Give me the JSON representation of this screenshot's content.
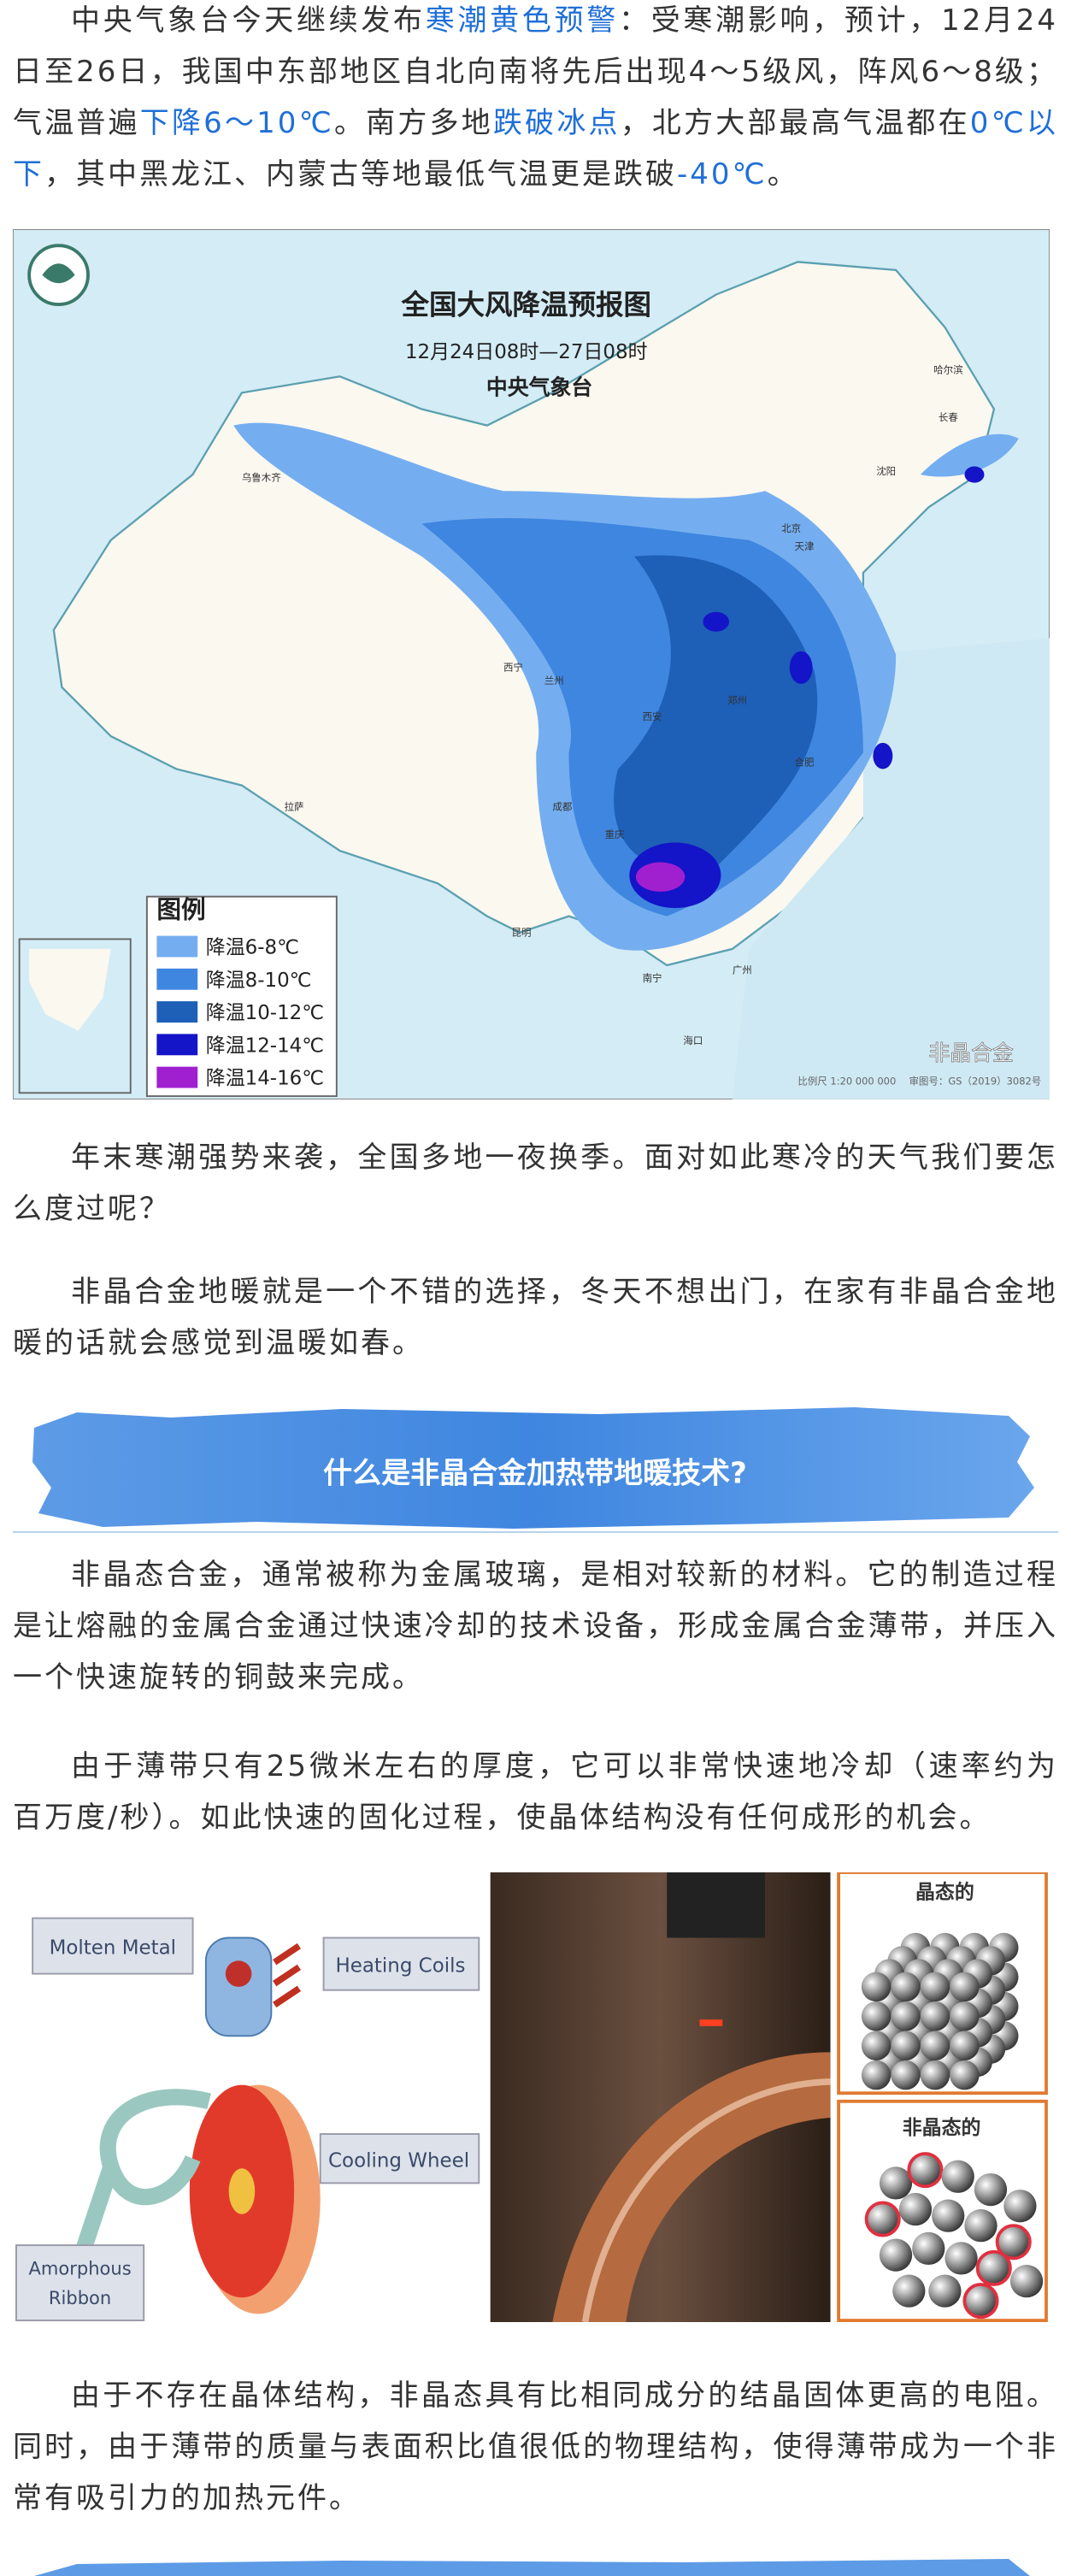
{
  "intro_paragraph": {
    "highlight_color": "#1f6fd8",
    "segments": [
      {
        "text": "中央气象台今天继续发布"
      },
      {
        "text": "寒潮黄色预警",
        "highlight": true
      },
      {
        "text": "：受寒潮影响，预计，12月24日至26日，我国中东部地区自北向南将先后出现4～5级风，阵风6～8级；气温普遍"
      },
      {
        "text": "下降6～10℃",
        "highlight": true
      },
      {
        "text": "。南方多地"
      },
      {
        "text": "跌破冰点",
        "highlight": true
      },
      {
        "text": "，北方大部最高气温都在"
      },
      {
        "text": "0℃以下",
        "highlight": true
      },
      {
        "text": "，其中黑龙江、内蒙古等地最低气温更是跌破"
      },
      {
        "text": "-40℃",
        "highlight": true
      },
      {
        "text": "。"
      }
    ]
  },
  "map_figure": {
    "title": "全国大风降温预报图",
    "time_range": "12月24日08时—27日08时",
    "issuer": "中央气象台",
    "legend_title": "图例",
    "legend_items": [
      {
        "label": "降温6-8℃",
        "color": "#74aef0"
      },
      {
        "label": "降温8-10℃",
        "color": "#3f86e0"
      },
      {
        "label": "降温10-12℃",
        "color": "#1e5fb8"
      },
      {
        "label": "降温12-14℃",
        "color": "#1414c8"
      },
      {
        "label": "降温14-16℃",
        "color": "#a020d0"
      }
    ],
    "cities": [
      "乌鲁木齐",
      "哈尔滨",
      "长春",
      "沈阳",
      "北京",
      "天津",
      "西宁",
      "兰州",
      "西安",
      "郑州",
      "合肥",
      "成都",
      "重庆",
      "拉萨",
      "昆明",
      "南宁",
      "广州",
      "海口"
    ],
    "scale_note": "比例尺 1:20 000 000",
    "approval_note": "审图号：GS（2019）3082号",
    "watermark": "非晶合金"
  },
  "body_paragraphs_1": [
    "年末寒潮强势来袭，全国多地一夜换季。面对如此寒冷的天气我们要怎么度过呢？",
    "非晶合金地暖就是一个不错的选择，冬天不想出门，在家有非晶合金地暖的话就会感觉到温暖如春。"
  ],
  "section_heading": "什么是非晶合金加热带地暖技术?",
  "body_paragraphs_2": [
    "非晶态合金，通常被称为金属玻璃，是相对较新的材料。它的制造过程是让熔融的金属合金通过快速冷却的技术设备，形成金属合金薄带，并压入一个快速旋转的铜鼓来完成。",
    "由于薄带只有25微米左右的厚度，它可以非常快速地冷却（速率约为百万度/秒）。如此快速的固化过程，使晶体结构没有任何成形的机会。"
  ],
  "process_figure": {
    "molten_metal": "Molten Metal",
    "heating_coils": "Heating Coils",
    "cooling_wheel": "Cooling Wheel",
    "amorphous_ribbon": [
      "Amorphous",
      "Ribbon"
    ],
    "crystalline": "晶态的",
    "amorphous": "非晶态的"
  },
  "body_paragraphs_3": [
    "由于不存在晶体结构，非晶态具有比相同成分的结晶固体更高的电阻。同时，由于薄带的质量与表面积比值很低的物理结构，使得薄带成为一个非常有吸引力的加热元件。"
  ]
}
